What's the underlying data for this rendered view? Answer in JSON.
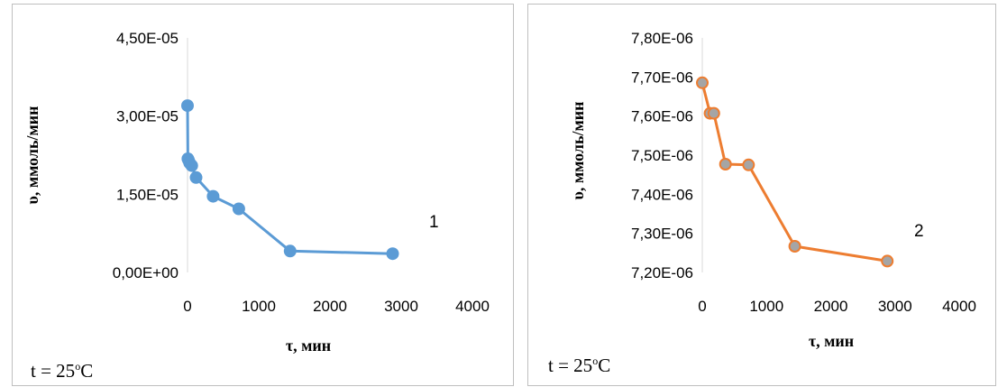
{
  "chart_data": [
    {
      "type": "line",
      "ylabel": "υ, ммоль/мин",
      "xlabel": "τ, мин",
      "curve_label": "1",
      "temperature": {
        "prefix": "t = 25",
        "degree": "o",
        "unit": "C"
      },
      "x_ticks": [
        "0",
        "1000",
        "2000",
        "3000",
        "4000"
      ],
      "y_ticks": [
        "0,00E+00",
        "1,50E-05",
        "3,00E-05",
        "4,50E-05"
      ],
      "xlim": [
        0,
        4000
      ],
      "ylim": [
        0,
        4.5e-05
      ],
      "color": "#5b9bd5",
      "marker": "circle",
      "x": [
        0,
        5,
        15,
        30,
        60,
        120,
        360,
        720,
        1440,
        2880
      ],
      "y": [
        3.2e-05,
        2.18e-05,
        2.15e-05,
        2.1e-05,
        2.05e-05,
        1.82e-05,
        1.46e-05,
        1.22e-05,
        4.1e-06,
        3.6e-06
      ]
    },
    {
      "type": "line",
      "ylabel": "υ, ммоль/мин",
      "xlabel": "τ, мин",
      "curve_label": "2",
      "temperature": {
        "prefix": "t = 25",
        "degree": "o",
        "unit": "C"
      },
      "x_ticks": [
        "0",
        "1000",
        "2000",
        "3000",
        "4000"
      ],
      "y_ticks": [
        "7,20E-06",
        "7,30E-06",
        "7,40E-06",
        "7,50E-06",
        "7,60E-06",
        "7,70E-06",
        "7,80E-06"
      ],
      "xlim": [
        0,
        4000
      ],
      "ylim": [
        7.2e-06,
        7.8e-06
      ],
      "color": "#ed7d31",
      "marker_color": "#a5a5a5",
      "marker": "circle",
      "x": [
        0,
        120,
        180,
        360,
        720,
        1440,
        2880
      ],
      "y": [
        7.685e-06,
        7.607e-06,
        7.607e-06,
        7.477e-06,
        7.475e-06,
        7.267e-06,
        7.229e-06
      ]
    }
  ]
}
